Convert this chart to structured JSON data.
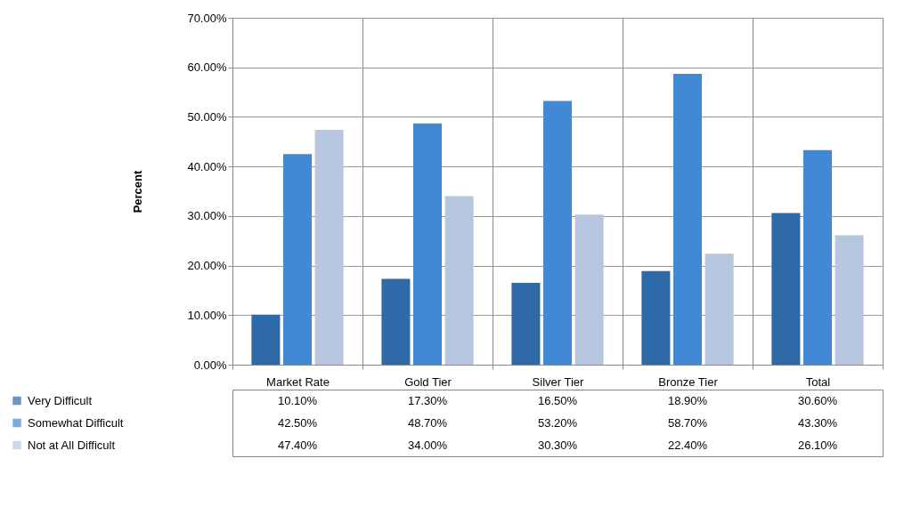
{
  "chart_data": {
    "type": "bar",
    "ylabel": "Percent",
    "categories": [
      "Market Rate",
      "Gold Tier",
      "Silver Tier",
      "Bronze Tier",
      "Total"
    ],
    "series": [
      {
        "name": "Very Difficult",
        "color": "#2f6aa8",
        "values": [
          10.1,
          17.3,
          16.5,
          18.9,
          30.6
        ],
        "value_labels": [
          "10.10%",
          "17.30%",
          "16.50%",
          "18.90%",
          "30.60%"
        ]
      },
      {
        "name": "Somewhat Difficult",
        "color": "#4189d4",
        "values": [
          42.5,
          48.7,
          53.2,
          58.7,
          43.3
        ],
        "value_labels": [
          "42.50%",
          "48.70%",
          "53.20%",
          "58.70%",
          "43.30%"
        ]
      },
      {
        "name": "Not at All Difficult",
        "color": "#b6c6de",
        "values": [
          47.4,
          34.0,
          30.3,
          22.4,
          26.1
        ],
        "value_labels": [
          "47.40%",
          "34.00%",
          "30.30%",
          "22.40%",
          "26.10%"
        ]
      }
    ],
    "ylim": [
      0,
      70
    ],
    "yticks": [
      {
        "value": 0,
        "label": "0.00%"
      },
      {
        "value": 10,
        "label": "10.00%"
      },
      {
        "value": 20,
        "label": "20.00%"
      },
      {
        "value": 30,
        "label": "30.00%"
      },
      {
        "value": 40,
        "label": "40.00%"
      },
      {
        "value": 50,
        "label": "50.00%"
      },
      {
        "value": 60,
        "label": "60.00%"
      },
      {
        "value": 70,
        "label": "70.00%"
      }
    ],
    "grid": "y",
    "legend": "bottom left"
  }
}
